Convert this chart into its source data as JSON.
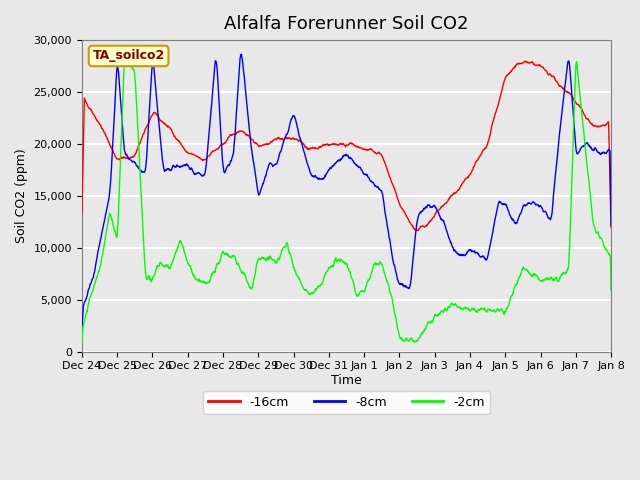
{
  "title": "Alfalfa Forerunner Soil CO2",
  "ylabel": "Soil CO2 (ppm)",
  "xlabel": "Time",
  "legend_label": "TA_soilco2",
  "series_labels": [
    "-16cm",
    "-8cm",
    "-2cm"
  ],
  "series_colors": [
    "red",
    "blue",
    "lime"
  ],
  "ylim": [
    0,
    30000
  ],
  "yticks": [
    0,
    5000,
    10000,
    15000,
    20000,
    25000,
    30000
  ],
  "xtick_labels": [
    "Dec 24",
    "Dec 25",
    "Dec 26",
    "Dec 27",
    "Dec 28",
    "Dec 29",
    "Dec 30",
    "Dec 31",
    "Jan 1",
    "Jan 2",
    "Jan 3",
    "Jan 4",
    "Jan 5",
    "Jan 6",
    "Jan 7",
    "Jan 8"
  ],
  "background_color": "#e8e8e8",
  "plot_bg_color": "#e8e8e8",
  "grid_color": "white",
  "legend_box_color": "#ffffcc",
  "legend_box_edge": "#cc9900",
  "red_xp": [
    0,
    0.5,
    1.0,
    1.5,
    2.0,
    2.5,
    3.0,
    3.5,
    4.0,
    4.5,
    5.0,
    5.5,
    6.0,
    6.5,
    7.0,
    7.5,
    8.0,
    8.5,
    9.0,
    9.5,
    10.0,
    10.5,
    11.0,
    11.5,
    12.0,
    12.5,
    13.0,
    13.5,
    14.0,
    14.5,
    15.0
  ],
  "red_fp": [
    24800,
    22000,
    18500,
    18800,
    23000,
    21500,
    19000,
    18500,
    20000,
    21500,
    19800,
    20500,
    20500,
    19500,
    20000,
    20000,
    19500,
    19000,
    14000,
    11500,
    13000,
    15000,
    17000,
    20000,
    26500,
    28000,
    27500,
    26000,
    24000,
    21500,
    22000
  ],
  "blue_xp": [
    0,
    0.3,
    0.8,
    1.0,
    1.2,
    1.5,
    1.8,
    2.0,
    2.3,
    2.5,
    2.8,
    3.0,
    3.2,
    3.5,
    3.8,
    4.0,
    4.3,
    4.5,
    4.8,
    5.0,
    5.3,
    5.5,
    5.8,
    6.0,
    6.3,
    6.5,
    6.8,
    7.0,
    7.3,
    7.5,
    7.8,
    8.0,
    8.3,
    8.5,
    8.8,
    9.0,
    9.3,
    9.5,
    9.8,
    10.0,
    10.3,
    10.5,
    10.8,
    11.0,
    11.3,
    11.5,
    11.8,
    12.0,
    12.3,
    12.5,
    12.8,
    13.0,
    13.3,
    13.5,
    13.8,
    14.0,
    14.3,
    14.5,
    14.8,
    15.0
  ],
  "blue_fp": [
    4000,
    7000,
    15500,
    28500,
    19000,
    18000,
    17000,
    28500,
    17500,
    17500,
    18000,
    18000,
    17200,
    17000,
    29000,
    17000,
    19000,
    29500,
    19500,
    15000,
    18000,
    18000,
    21000,
    23000,
    19000,
    17000,
    16500,
    17500,
    18500,
    19000,
    18000,
    17000,
    16000,
    15500,
    9000,
    6500,
    6000,
    13000,
    14000,
    14000,
    12000,
    10000,
    9000,
    10000,
    9000,
    9000,
    14500,
    14000,
    12000,
    14000,
    14500,
    14000,
    12500,
    20000,
    29000,
    19000,
    20000,
    19500,
    19000,
    19500
  ],
  "green_xp": [
    0,
    0.2,
    0.5,
    0.8,
    1.0,
    1.2,
    1.5,
    1.8,
    2.0,
    2.2,
    2.5,
    2.8,
    3.0,
    3.2,
    3.5,
    3.8,
    4.0,
    4.3,
    4.5,
    4.8,
    5.0,
    5.3,
    5.5,
    5.8,
    6.0,
    6.3,
    6.5,
    6.8,
    7.0,
    7.3,
    7.5,
    7.8,
    8.0,
    8.3,
    8.5,
    8.8,
    9.0,
    9.5,
    10.0,
    10.5,
    11.0,
    11.5,
    12.0,
    12.5,
    13.0,
    13.5,
    13.8,
    14.0,
    14.5,
    15.0
  ],
  "green_fp": [
    2000,
    5000,
    8000,
    13500,
    10500,
    28500,
    27000,
    7000,
    7000,
    8500,
    8000,
    10800,
    8500,
    7000,
    6500,
    8000,
    9500,
    9000,
    8000,
    6000,
    9000,
    9000,
    8500,
    10500,
    8000,
    6000,
    5500,
    6500,
    8000,
    9000,
    8500,
    5500,
    6000,
    8500,
    8500,
    5000,
    1200,
    1000,
    3500,
    4500,
    4000,
    4000,
    4000,
    8000,
    7000,
    7000,
    8000,
    28500,
    12000,
    9000
  ]
}
